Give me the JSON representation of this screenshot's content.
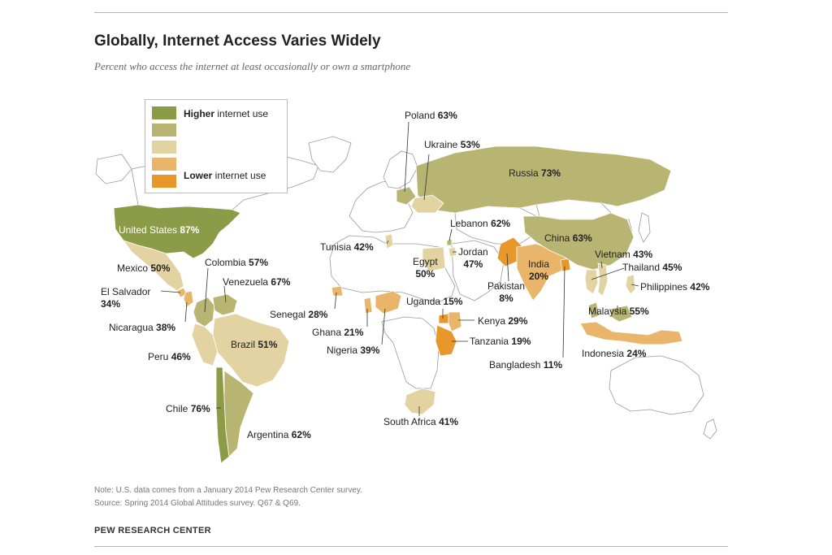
{
  "title": "Globally, Internet Access Varies Widely",
  "subtitle": "Percent who access the internet at least occasionally or own a smartphone",
  "legend": {
    "higher_bold": "Higher",
    "higher_rest": " internet use",
    "lower_bold": "Lower",
    "lower_rest": " internet use",
    "colors": [
      "#8b9b48",
      "#b8b472",
      "#e3d3a3",
      "#e9b56b",
      "#e8982b"
    ]
  },
  "countries": [
    {
      "id": "united-states",
      "name": "United States",
      "pct": "87%",
      "color": "#8b9b48"
    },
    {
      "id": "russia",
      "name": "Russia",
      "pct": "73%",
      "color": "#b8b472"
    },
    {
      "id": "poland",
      "name": "Poland",
      "pct": "63%",
      "color": "#b8b472"
    },
    {
      "id": "ukraine",
      "name": "Ukraine",
      "pct": "53%",
      "color": "#e3d3a3"
    },
    {
      "id": "lebanon",
      "name": "Lebanon",
      "pct": "62%",
      "color": "#b8b472"
    },
    {
      "id": "tunisia",
      "name": "Tunisia",
      "pct": "42%",
      "color": "#e3d3a3"
    },
    {
      "id": "jordan",
      "name": "Jordan",
      "pct": "47%",
      "color": "#e3d3a3"
    },
    {
      "id": "egypt",
      "name": "Egypt",
      "pct": "50%",
      "color": "#e3d3a3"
    },
    {
      "id": "china",
      "name": "China",
      "pct": "63%",
      "color": "#b8b472"
    },
    {
      "id": "india",
      "name": "India",
      "pct": "20%",
      "color": "#e9b56b"
    },
    {
      "id": "pakistan",
      "name": "Pakistan",
      "pct": "8%",
      "color": "#e8982b"
    },
    {
      "id": "vietnam",
      "name": "Vietnam",
      "pct": "43%",
      "color": "#e3d3a3"
    },
    {
      "id": "thailand",
      "name": "Thailand",
      "pct": "45%",
      "color": "#e3d3a3"
    },
    {
      "id": "philippines",
      "name": "Philippines",
      "pct": "42%",
      "color": "#e3d3a3"
    },
    {
      "id": "malaysia",
      "name": "Malaysia",
      "pct": "55%",
      "color": "#b8b472"
    },
    {
      "id": "indonesia",
      "name": "Indonesia",
      "pct": "24%",
      "color": "#e9b56b"
    },
    {
      "id": "bangladesh",
      "name": "Bangladesh",
      "pct": "11%",
      "color": "#e8982b"
    },
    {
      "id": "mexico",
      "name": "Mexico",
      "pct": "50%",
      "color": "#e3d3a3"
    },
    {
      "id": "colombia",
      "name": "Colombia",
      "pct": "57%",
      "color": "#b8b472"
    },
    {
      "id": "venezuela",
      "name": "Venezuela",
      "pct": "67%",
      "color": "#b8b472"
    },
    {
      "id": "el-salvador",
      "name": "El Salvador",
      "pct": "34%",
      "color": "#e9b56b"
    },
    {
      "id": "nicaragua",
      "name": "Nicaragua",
      "pct": "38%",
      "color": "#e9b56b"
    },
    {
      "id": "peru",
      "name": "Peru",
      "pct": "46%",
      "color": "#e3d3a3"
    },
    {
      "id": "brazil",
      "name": "Brazil",
      "pct": "51%",
      "color": "#e3d3a3"
    },
    {
      "id": "chile",
      "name": "Chile",
      "pct": "76%",
      "color": "#8b9b48"
    },
    {
      "id": "argentina",
      "name": "Argentina",
      "pct": "62%",
      "color": "#b8b472"
    },
    {
      "id": "senegal",
      "name": "Senegal",
      "pct": "28%",
      "color": "#e9b56b"
    },
    {
      "id": "ghana",
      "name": "Ghana",
      "pct": "21%",
      "color": "#e9b56b"
    },
    {
      "id": "nigeria",
      "name": "Nigeria",
      "pct": "39%",
      "color": "#e9b56b"
    },
    {
      "id": "uganda",
      "name": "Uganda",
      "pct": "15%",
      "color": "#e8982b"
    },
    {
      "id": "kenya",
      "name": "Kenya",
      "pct": "29%",
      "color": "#e9b56b"
    },
    {
      "id": "tanzania",
      "name": "Tanzania",
      "pct": "19%",
      "color": "#e8982b"
    },
    {
      "id": "south-africa",
      "name": "South Africa",
      "pct": "41%",
      "color": "#e3d3a3"
    }
  ],
  "notes": {
    "note": "Note: U.S. data comes from a January 2014 Pew Research Center survey.",
    "source": "Source: Spring 2014 Global Attitudes survey. Q67 & Q69.",
    "org": "PEW RESEARCH CENTER"
  }
}
